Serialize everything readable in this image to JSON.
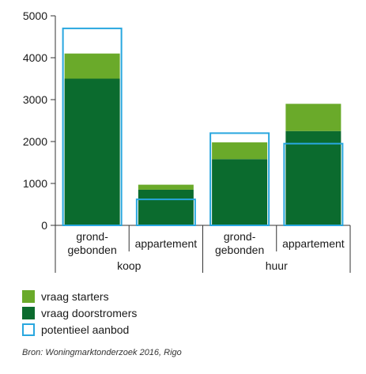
{
  "colors": {
    "starters": "#6aaa2a",
    "doorstromers": "#0b6b2e",
    "aanbod": "#29a7df",
    "axis": "#333333"
  },
  "chart_data": {
    "type": "bar",
    "stacked": true,
    "ylim": [
      0,
      5000
    ],
    "yticks": [
      0,
      1000,
      2000,
      3000,
      4000,
      5000
    ],
    "grid": false,
    "categories": [
      "grond-\ngebonden",
      "appartement",
      "grond-\ngebonden",
      "appartement"
    ],
    "groups": [
      {
        "label": "koop",
        "categories": [
          0,
          1
        ]
      },
      {
        "label": "huur",
        "categories": [
          2,
          3
        ]
      }
    ],
    "series": [
      {
        "name": "vraag doorstromers",
        "key": "doorstromers",
        "kind": "stack",
        "values": [
          3500,
          850,
          1580,
          2250
        ]
      },
      {
        "name": "vraag starters",
        "key": "starters",
        "kind": "stack",
        "values": [
          600,
          120,
          400,
          650
        ]
      },
      {
        "name": "potentieel aanbod",
        "key": "aanbod",
        "kind": "outline",
        "values": [
          4700,
          620,
          2200,
          1950
        ]
      }
    ]
  },
  "legend": [
    {
      "label": "vraag starters",
      "key": "starters",
      "kind": "fill"
    },
    {
      "label": "vraag doorstromers",
      "key": "doorstromers",
      "kind": "fill"
    },
    {
      "label": "potentieel aanbod",
      "key": "aanbod",
      "kind": "outline"
    }
  ],
  "source": "Bron: Woningmarktonderzoek 2016, Rigo"
}
